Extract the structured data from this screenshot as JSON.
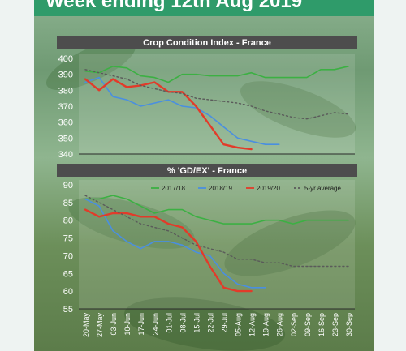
{
  "header": {
    "title": "Week ending 12th Aug 2019"
  },
  "colors": {
    "c2017": "#3cb043",
    "c2018": "#4a8fe0",
    "c2019": "#e23b2a",
    "avg": "#5a5a5a",
    "header_bg": "#2f9b6a",
    "title_bar": "#4d4d4d"
  },
  "legend": {
    "items": [
      "2017/18",
      "2018/19",
      "2019/20",
      "5-yr average"
    ]
  },
  "chart_data": [
    {
      "type": "line",
      "title": "Crop Condition Index - France",
      "ylim": [
        340,
        400
      ],
      "yticks": [
        "400",
        "390",
        "380",
        "370",
        "360",
        "350",
        "340"
      ],
      "x": [
        "20-May",
        "27-May",
        "03-Jun",
        "10-Jun",
        "17-Jun",
        "24-Jun",
        "01-Jul",
        "08-Jul",
        "15-Jul",
        "22-Jul",
        "29-Jul",
        "05-Aug",
        "12-Aug",
        "19-Aug",
        "26-Aug",
        "02-Sep",
        "09-Sep",
        "16-Sep",
        "23-Sep",
        "30-Sep"
      ],
      "series": [
        {
          "name": "2017/18",
          "values": [
            392,
            391,
            395,
            394,
            389,
            388,
            385,
            390,
            390,
            389,
            389,
            389,
            391,
            388,
            388,
            388,
            388,
            393,
            393,
            395
          ]
        },
        {
          "name": "2018/19",
          "values": [
            385,
            388,
            376,
            374,
            370,
            372,
            374,
            370,
            369,
            364,
            357,
            350,
            348,
            346,
            346,
            null,
            null,
            null,
            null,
            null
          ]
        },
        {
          "name": "2019/20",
          "values": [
            387,
            380,
            387,
            382,
            383,
            385,
            379,
            379,
            370,
            358,
            346,
            344,
            343,
            null,
            null,
            null,
            null,
            null,
            null,
            null
          ]
        },
        {
          "name": "5-yr average",
          "values": [
            393,
            391,
            389,
            387,
            383,
            381,
            379,
            378,
            375,
            374,
            373,
            372,
            370,
            367,
            365,
            363,
            362,
            364,
            366,
            365
          ]
        }
      ]
    },
    {
      "type": "line",
      "title": "% 'GD/EX' - France",
      "ylim": [
        55,
        90
      ],
      "yticks": [
        "90",
        "85",
        "80",
        "75",
        "70",
        "65",
        "60",
        "55"
      ],
      "x": [
        "20-May",
        "27-May",
        "03-Jun",
        "10-Jun",
        "17-Jun",
        "24-Jun",
        "01-Jul",
        "08-Jul",
        "15-Jul",
        "22-Jul",
        "29-Jul",
        "05-Aug",
        "12-Aug",
        "19-Aug",
        "26-Aug",
        "02-Sep",
        "09-Sep",
        "16-Sep",
        "23-Sep",
        "30-Sep"
      ],
      "series": [
        {
          "name": "2017/18",
          "values": [
            86,
            86,
            87,
            86,
            84,
            82,
            83,
            83,
            81,
            80,
            79,
            79,
            79,
            80,
            80,
            79,
            80,
            80,
            80,
            80
          ]
        },
        {
          "name": "2018/19",
          "values": [
            86,
            84,
            77,
            74,
            72,
            74,
            74,
            73,
            71,
            70,
            65,
            62,
            61,
            61,
            null,
            null,
            null,
            null,
            null,
            null
          ]
        },
        {
          "name": "2019/20",
          "values": [
            83,
            81,
            82,
            82,
            81,
            81,
            79,
            78,
            74,
            67,
            61,
            60,
            60,
            null,
            null,
            null,
            null,
            null,
            null,
            null
          ]
        },
        {
          "name": "5-yr average",
          "values": [
            87,
            85,
            83,
            81,
            79,
            78,
            77,
            75,
            73,
            72,
            71,
            69,
            69,
            68,
            68,
            67,
            67,
            67,
            67,
            67
          ]
        }
      ]
    }
  ]
}
